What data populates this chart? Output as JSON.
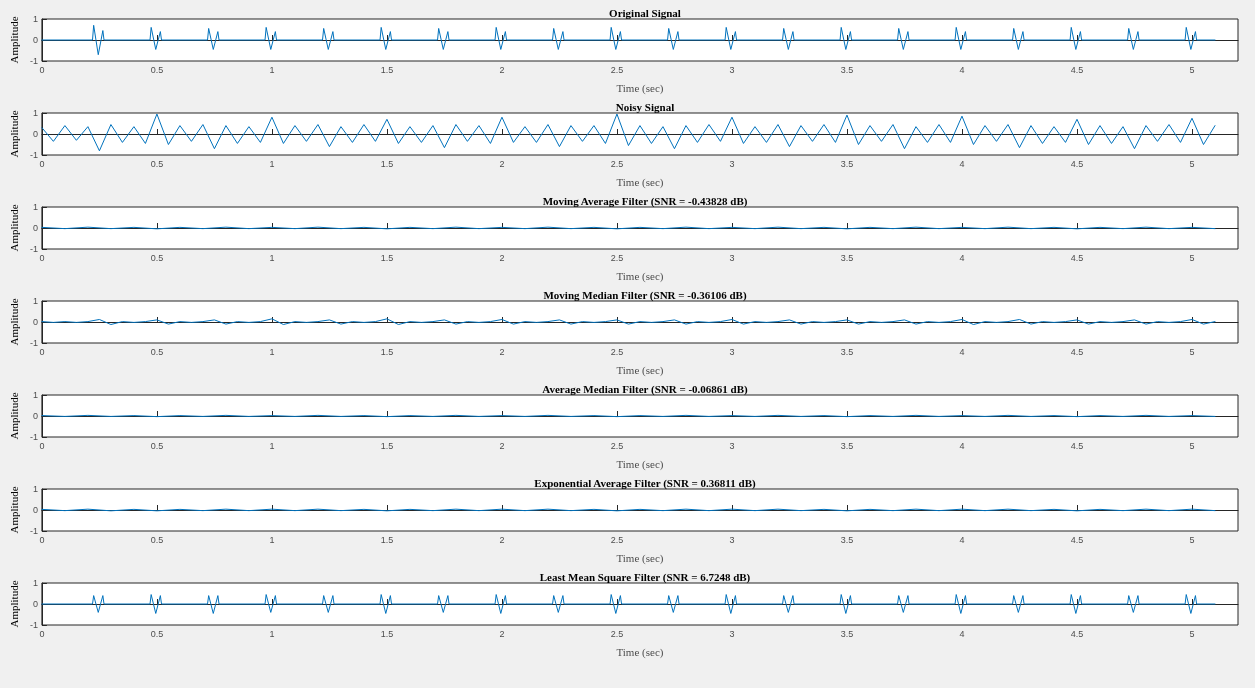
{
  "chart_data": [
    {
      "type": "line",
      "title": "Original Signal",
      "xlabel": "Time (sec)",
      "ylabel": "Amplitude",
      "color": "#0072bd",
      "marker": "none",
      "line_style": "solid",
      "xlim": [
        0,
        5.2
      ],
      "xticks": [
        0,
        0.5,
        1,
        1.5,
        2,
        2.5,
        3,
        3.5,
        4,
        4.5,
        5
      ],
      "ylim": [
        -1,
        1
      ],
      "yticks": [
        -1,
        0,
        1
      ],
      "x": [
        0,
        0.22,
        0.225,
        0.245,
        0.265,
        0.27,
        0.47,
        0.475,
        0.495,
        0.515,
        0.52,
        0.72,
        0.725,
        0.745,
        0.765,
        0.77,
        0.97,
        0.975,
        0.995,
        1.015,
        1.02,
        1.22,
        1.225,
        1.245,
        1.265,
        1.27,
        1.47,
        1.475,
        1.495,
        1.515,
        1.52,
        1.72,
        1.725,
        1.745,
        1.765,
        1.77,
        1.97,
        1.975,
        1.995,
        2.015,
        2.02,
        2.22,
        2.225,
        2.245,
        2.265,
        2.27,
        2.47,
        2.475,
        2.495,
        2.515,
        2.52,
        2.72,
        2.725,
        2.745,
        2.765,
        2.77,
        2.97,
        2.975,
        2.995,
        3.015,
        3.02,
        3.22,
        3.225,
        3.245,
        3.265,
        3.27,
        3.47,
        3.475,
        3.495,
        3.515,
        3.52,
        3.72,
        3.725,
        3.745,
        3.765,
        3.77,
        3.97,
        3.975,
        3.995,
        4.015,
        4.02,
        4.22,
        4.225,
        4.245,
        4.265,
        4.27,
        4.47,
        4.475,
        4.495,
        4.515,
        4.52,
        4.72,
        4.725,
        4.745,
        4.765,
        4.77,
        4.97,
        4.975,
        4.995,
        5.015,
        5.02,
        5.1
      ],
      "values": [
        0,
        0,
        0.7,
        -0.7,
        0.45,
        0,
        0,
        0.6,
        -0.45,
        0.4,
        0,
        0,
        0.55,
        -0.45,
        0.4,
        0,
        0,
        0.6,
        -0.45,
        0.4,
        0,
        0,
        0.55,
        -0.45,
        0.4,
        0,
        0,
        0.6,
        -0.45,
        0.4,
        0,
        0,
        0.55,
        -0.45,
        0.4,
        0,
        0,
        0.6,
        -0.45,
        0.4,
        0,
        0,
        0.55,
        -0.45,
        0.4,
        0,
        0,
        0.6,
        -0.45,
        0.4,
        0,
        0,
        0.55,
        -0.45,
        0.4,
        0,
        0,
        0.6,
        -0.45,
        0.4,
        0,
        0,
        0.55,
        -0.45,
        0.4,
        0,
        0,
        0.6,
        -0.45,
        0.4,
        0,
        0,
        0.55,
        -0.45,
        0.4,
        0,
        0,
        0.6,
        -0.45,
        0.4,
        0,
        0,
        0.55,
        -0.45,
        0.4,
        0,
        0,
        0.6,
        -0.45,
        0.4,
        0,
        0,
        0.55,
        -0.45,
        0.4,
        0,
        0,
        0.6,
        -0.45,
        0.4,
        0,
        0
      ]
    },
    {
      "type": "line",
      "title": "Noisy Signal",
      "xlabel": "Time (sec)",
      "ylabel": "Amplitude",
      "color": "#0072bd",
      "marker": "none",
      "line_style": "solid",
      "xlim": [
        0,
        5.2
      ],
      "xticks": [
        0,
        0.5,
        1,
        1.5,
        2,
        2.5,
        3,
        3.5,
        4,
        4.5,
        5
      ],
      "ylim": [
        -1,
        1
      ],
      "yticks": [
        -1,
        0,
        1
      ],
      "x": [
        0,
        0.05,
        0.1,
        0.15,
        0.2,
        0.25,
        0.3,
        0.35,
        0.4,
        0.45,
        0.5,
        0.55,
        0.6,
        0.65,
        0.7,
        0.75,
        0.8,
        0.85,
        0.9,
        0.95,
        1,
        1.05,
        1.1,
        1.15,
        1.2,
        1.25,
        1.3,
        1.35,
        1.4,
        1.45,
        1.5,
        1.55,
        1.6,
        1.65,
        1.7,
        1.75,
        1.8,
        1.85,
        1.9,
        1.95,
        2,
        2.05,
        2.1,
        2.15,
        2.2,
        2.25,
        2.3,
        2.35,
        2.4,
        2.45,
        2.5,
        2.55,
        2.6,
        2.65,
        2.7,
        2.75,
        2.8,
        2.85,
        2.9,
        2.95,
        3,
        3.05,
        3.1,
        3.15,
        3.2,
        3.25,
        3.3,
        3.35,
        3.4,
        3.45,
        3.5,
        3.55,
        3.6,
        3.65,
        3.7,
        3.75,
        3.8,
        3.85,
        3.9,
        3.95,
        4,
        4.05,
        4.1,
        4.15,
        4.2,
        4.25,
        4.3,
        4.35,
        4.4,
        4.45,
        4.5,
        4.55,
        4.6,
        4.65,
        4.7,
        4.75,
        4.8,
        4.85,
        4.9,
        4.95,
        5,
        5.05,
        5.1
      ],
      "values": [
        0.3,
        -0.35,
        0.4,
        -0.3,
        0.35,
        -0.8,
        0.45,
        -0.4,
        0.35,
        -0.45,
        0.95,
        -0.5,
        0.4,
        -0.35,
        0.45,
        -0.7,
        0.4,
        -0.45,
        0.35,
        -0.4,
        0.8,
        -0.45,
        0.4,
        -0.35,
        0.45,
        -0.6,
        0.35,
        -0.4,
        0.45,
        -0.35,
        0.7,
        -0.45,
        0.35,
        -0.4,
        0.4,
        -0.65,
        0.45,
        -0.35,
        0.4,
        -0.45,
        0.8,
        -0.4,
        0.35,
        -0.4,
        0.45,
        -0.6,
        0.4,
        -0.35,
        0.4,
        -0.45,
        0.95,
        -0.55,
        0.4,
        -0.45,
        0.35,
        -0.7,
        0.4,
        -0.4,
        0.45,
        -0.35,
        0.8,
        -0.45,
        0.35,
        -0.4,
        0.45,
        -0.6,
        0.4,
        -0.35,
        0.45,
        -0.4,
        0.9,
        -0.5,
        0.4,
        -0.35,
        0.45,
        -0.7,
        0.35,
        -0.4,
        0.45,
        -0.4,
        0.85,
        -0.5,
        0.4,
        -0.35,
        0.45,
        -0.65,
        0.4,
        -0.45,
        0.35,
        -0.4,
        0.7,
        -0.5,
        0.4,
        -0.45,
        0.35,
        -0.7,
        0.4,
        -0.35,
        0.45,
        -0.4,
        0.75,
        -0.5,
        0.4
      ]
    },
    {
      "type": "line",
      "title": "Moving Average Filter (SNR = -0.43828 dB)",
      "xlabel": "Time (sec)",
      "ylabel": "Amplitude",
      "color": "#0072bd",
      "marker": "none",
      "line_style": "solid",
      "xlim": [
        0,
        5.2
      ],
      "xticks": [
        0,
        0.5,
        1,
        1.5,
        2,
        2.5,
        3,
        3.5,
        4,
        4.5,
        5
      ],
      "ylim": [
        -1,
        1
      ],
      "yticks": [
        -1,
        0,
        1
      ],
      "x": [
        0,
        0.1,
        0.2,
        0.3,
        0.4,
        0.5,
        0.6,
        0.7,
        0.8,
        0.9,
        1,
        1.1,
        1.2,
        1.3,
        1.4,
        1.5,
        1.6,
        1.7,
        1.8,
        1.9,
        2,
        2.1,
        2.2,
        2.3,
        2.4,
        2.5,
        2.6,
        2.7,
        2.8,
        2.9,
        3,
        3.1,
        3.2,
        3.3,
        3.4,
        3.5,
        3.6,
        3.7,
        3.8,
        3.9,
        4,
        4.1,
        4.2,
        4.3,
        4.4,
        4.5,
        4.6,
        4.7,
        4.8,
        4.9,
        5,
        5.1
      ],
      "values": [
        0.03,
        -0.03,
        0.04,
        -0.03,
        0.03,
        -0.04,
        0.03,
        -0.03,
        0.04,
        -0.03,
        0.03,
        -0.03,
        0.04,
        -0.03,
        0.03,
        -0.04,
        0.03,
        -0.03,
        0.04,
        -0.03,
        0.03,
        -0.03,
        0.04,
        -0.03,
        0.03,
        -0.04,
        0.03,
        -0.03,
        0.04,
        -0.03,
        0.03,
        -0.03,
        0.04,
        -0.03,
        0.03,
        -0.04,
        0.03,
        -0.03,
        0.04,
        -0.03,
        0.03,
        -0.03,
        0.04,
        -0.03,
        0.03,
        -0.04,
        0.03,
        -0.03,
        0.04,
        -0.03,
        0.03,
        -0.03
      ]
    },
    {
      "type": "line",
      "title": "Moving Median Filter (SNR = -0.36106 dB)",
      "xlabel": "Time (sec)",
      "ylabel": "Amplitude",
      "color": "#0072bd",
      "marker": "none",
      "line_style": "solid",
      "xlim": [
        0,
        5.2
      ],
      "xticks": [
        0,
        0.5,
        1,
        1.5,
        2,
        2.5,
        3,
        3.5,
        4,
        4.5,
        5
      ],
      "ylim": [
        -1,
        1
      ],
      "yticks": [
        -1,
        0,
        1
      ],
      "x": [
        0,
        0.05,
        0.1,
        0.15,
        0.2,
        0.25,
        0.3,
        0.35,
        0.4,
        0.45,
        0.5,
        0.55,
        0.6,
        0.65,
        0.7,
        0.75,
        0.8,
        0.85,
        0.9,
        0.95,
        1,
        1.05,
        1.1,
        1.15,
        1.2,
        1.25,
        1.3,
        1.35,
        1.4,
        1.45,
        1.5,
        1.55,
        1.6,
        1.65,
        1.7,
        1.75,
        1.8,
        1.85,
        1.9,
        1.95,
        2,
        2.05,
        2.1,
        2.15,
        2.2,
        2.25,
        2.3,
        2.35,
        2.4,
        2.45,
        2.5,
        2.55,
        2.6,
        2.65,
        2.7,
        2.75,
        2.8,
        2.85,
        2.9,
        2.95,
        3,
        3.05,
        3.1,
        3.15,
        3.2,
        3.25,
        3.3,
        3.35,
        3.4,
        3.45,
        3.5,
        3.55,
        3.6,
        3.65,
        3.7,
        3.75,
        3.8,
        3.85,
        3.9,
        3.95,
        4,
        4.05,
        4.1,
        4.15,
        4.2,
        4.25,
        4.3,
        4.35,
        4.4,
        4.45,
        4.5,
        4.55,
        4.6,
        4.65,
        4.7,
        4.75,
        4.8,
        4.85,
        4.9,
        4.95,
        5,
        5.05,
        5.1
      ],
      "values": [
        0.02,
        -0.02,
        0.02,
        -0.02,
        0.02,
        0.12,
        -0.12,
        0.02,
        -0.02,
        0.02,
        0.1,
        -0.1,
        0.02,
        -0.02,
        0.02,
        0.1,
        -0.1,
        0.02,
        -0.02,
        0.02,
        0.15,
        -0.12,
        0.02,
        -0.02,
        0.02,
        0.1,
        -0.1,
        0.02,
        -0.02,
        0.02,
        0.15,
        -0.12,
        0.02,
        -0.02,
        0.02,
        0.1,
        -0.1,
        0.02,
        -0.02,
        0.02,
        0.12,
        -0.1,
        0.02,
        -0.02,
        0.02,
        0.1,
        -0.1,
        0.02,
        -0.02,
        0.02,
        0.1,
        -0.1,
        0.02,
        -0.02,
        0.02,
        0.1,
        -0.1,
        0.02,
        -0.02,
        0.02,
        0.12,
        -0.1,
        0.02,
        -0.02,
        0.02,
        0.1,
        -0.1,
        0.02,
        -0.02,
        0.02,
        0.1,
        -0.1,
        0.02,
        -0.02,
        0.02,
        0.1,
        -0.1,
        0.02,
        -0.02,
        0.02,
        0.12,
        -0.12,
        0.02,
        -0.02,
        0.02,
        0.12,
        -0.1,
        0.02,
        -0.02,
        0.02,
        0.1,
        -0.1,
        0.02,
        -0.02,
        0.02,
        0.1,
        -0.1,
        0.02,
        -0.02,
        0.02,
        0.12,
        -0.1,
        0.02
      ]
    },
    {
      "type": "line",
      "title": "Average Median Filter (SNR = -0.06861 dB)",
      "xlabel": "Time (sec)",
      "ylabel": "Amplitude",
      "color": "#0072bd",
      "marker": "none",
      "line_style": "solid",
      "xlim": [
        0,
        5.2
      ],
      "xticks": [
        0,
        0.5,
        1,
        1.5,
        2,
        2.5,
        3,
        3.5,
        4,
        4.5,
        5
      ],
      "ylim": [
        -1,
        1
      ],
      "yticks": [
        -1,
        0,
        1
      ],
      "x": [
        0,
        0.1,
        0.2,
        0.3,
        0.4,
        0.5,
        0.6,
        0.7,
        0.8,
        0.9,
        1,
        1.1,
        1.2,
        1.3,
        1.4,
        1.5,
        1.6,
        1.7,
        1.8,
        1.9,
        2,
        2.1,
        2.2,
        2.3,
        2.4,
        2.5,
        2.6,
        2.7,
        2.8,
        2.9,
        3,
        3.1,
        3.2,
        3.3,
        3.4,
        3.5,
        3.6,
        3.7,
        3.8,
        3.9,
        4,
        4.1,
        4.2,
        4.3,
        4.4,
        4.5,
        4.6,
        4.7,
        4.8,
        4.9,
        5,
        5.1
      ],
      "values": [
        0.02,
        -0.02,
        0.03,
        -0.02,
        0.02,
        -0.03,
        0.02,
        -0.02,
        0.03,
        -0.02,
        0.02,
        -0.02,
        0.03,
        -0.02,
        0.02,
        -0.03,
        0.02,
        -0.02,
        0.03,
        -0.02,
        0.02,
        -0.02,
        0.03,
        -0.02,
        0.02,
        -0.03,
        0.02,
        -0.02,
        0.03,
        -0.02,
        0.02,
        -0.02,
        0.03,
        -0.02,
        0.02,
        -0.03,
        0.02,
        -0.02,
        0.03,
        -0.02,
        0.02,
        -0.02,
        0.03,
        -0.02,
        0.02,
        -0.03,
        0.02,
        -0.02,
        0.03,
        -0.02,
        0.02,
        -0.02
      ]
    },
    {
      "type": "line",
      "title": "Exponential Average Filter (SNR = 0.36811 dB)",
      "xlabel": "Time (sec)",
      "ylabel": "Amplitude",
      "color": "#0072bd",
      "marker": "none",
      "line_style": "solid",
      "xlim": [
        0,
        5.2
      ],
      "xticks": [
        0,
        0.5,
        1,
        1.5,
        2,
        2.5,
        3,
        3.5,
        4,
        4.5,
        5
      ],
      "ylim": [
        -1,
        1
      ],
      "yticks": [
        -1,
        0,
        1
      ],
      "x": [
        0,
        0.1,
        0.2,
        0.3,
        0.4,
        0.5,
        0.6,
        0.7,
        0.8,
        0.9,
        1,
        1.1,
        1.2,
        1.3,
        1.4,
        1.5,
        1.6,
        1.7,
        1.8,
        1.9,
        2,
        2.1,
        2.2,
        2.3,
        2.4,
        2.5,
        2.6,
        2.7,
        2.8,
        2.9,
        3,
        3.1,
        3.2,
        3.3,
        3.4,
        3.5,
        3.6,
        3.7,
        3.8,
        3.9,
        4,
        4.1,
        4.2,
        4.3,
        4.4,
        4.5,
        4.6,
        4.7,
        4.8,
        4.9,
        5,
        5.1
      ],
      "values": [
        0.03,
        -0.03,
        0.04,
        -0.04,
        0.03,
        -0.04,
        0.03,
        -0.03,
        0.04,
        -0.03,
        0.04,
        -0.03,
        0.04,
        -0.03,
        0.03,
        -0.04,
        0.03,
        -0.03,
        0.04,
        -0.03,
        0.04,
        -0.03,
        0.04,
        -0.03,
        0.03,
        -0.04,
        0.03,
        -0.03,
        0.04,
        -0.03,
        0.04,
        -0.03,
        0.04,
        -0.03,
        0.03,
        -0.04,
        0.03,
        -0.03,
        0.04,
        -0.03,
        0.04,
        -0.03,
        0.04,
        -0.03,
        0.03,
        -0.04,
        0.03,
        -0.03,
        0.04,
        -0.03,
        0.04,
        -0.03
      ]
    },
    {
      "type": "line",
      "title": "Least Mean Square Filter (SNR = 6.7248 dB)",
      "xlabel": "Time (sec)",
      "ylabel": "Amplitude",
      "color": "#0072bd",
      "marker": "none",
      "line_style": "solid",
      "xlim": [
        0,
        5.2
      ],
      "xticks": [
        0,
        0.5,
        1,
        1.5,
        2,
        2.5,
        3,
        3.5,
        4,
        4.5,
        5
      ],
      "ylim": [
        -1,
        1
      ],
      "yticks": [
        -1,
        0,
        1
      ],
      "x": [
        0,
        0.22,
        0.225,
        0.245,
        0.265,
        0.27,
        0.47,
        0.475,
        0.495,
        0.515,
        0.52,
        0.72,
        0.725,
        0.745,
        0.765,
        0.77,
        0.97,
        0.975,
        0.995,
        1.015,
        1.02,
        1.22,
        1.225,
        1.245,
        1.265,
        1.27,
        1.47,
        1.475,
        1.495,
        1.515,
        1.52,
        1.72,
        1.725,
        1.745,
        1.765,
        1.77,
        1.97,
        1.975,
        1.995,
        2.015,
        2.02,
        2.22,
        2.225,
        2.245,
        2.265,
        2.27,
        2.47,
        2.475,
        2.495,
        2.515,
        2.52,
        2.72,
        2.725,
        2.745,
        2.765,
        2.77,
        2.97,
        2.975,
        2.995,
        3.015,
        3.02,
        3.22,
        3.225,
        3.245,
        3.265,
        3.27,
        3.47,
        3.475,
        3.495,
        3.515,
        3.52,
        3.72,
        3.725,
        3.745,
        3.765,
        3.77,
        3.97,
        3.975,
        3.995,
        4.015,
        4.02,
        4.22,
        4.225,
        4.245,
        4.265,
        4.27,
        4.47,
        4.475,
        4.495,
        4.515,
        4.52,
        4.72,
        4.725,
        4.745,
        4.765,
        4.77,
        4.97,
        4.975,
        4.995,
        5.015,
        5.02,
        5.1
      ],
      "values": [
        0,
        0,
        0.4,
        -0.4,
        0.4,
        0,
        0,
        0.45,
        -0.45,
        0.4,
        0,
        0,
        0.4,
        -0.45,
        0.4,
        0,
        0,
        0.45,
        -0.4,
        0.4,
        0,
        0,
        0.4,
        -0.4,
        0.4,
        0,
        0,
        0.45,
        -0.45,
        0.4,
        0,
        0,
        0.4,
        -0.4,
        0.4,
        0,
        0,
        0.45,
        -0.45,
        0.4,
        0,
        0,
        0.4,
        -0.4,
        0.4,
        0,
        0,
        0.45,
        -0.45,
        0.4,
        0,
        0,
        0.4,
        -0.4,
        0.4,
        0,
        0,
        0.45,
        -0.45,
        0.4,
        0,
        0,
        0.4,
        -0.4,
        0.4,
        0,
        0,
        0.45,
        -0.45,
        0.4,
        0,
        0,
        0.4,
        -0.4,
        0.4,
        0,
        0,
        0.45,
        -0.45,
        0.4,
        0,
        0,
        0.4,
        -0.4,
        0.4,
        0,
        0,
        0.45,
        -0.45,
        0.4,
        0,
        0,
        0.4,
        -0.4,
        0.4,
        0,
        0,
        0.45,
        -0.45,
        0.4,
        0,
        0
      ]
    }
  ]
}
